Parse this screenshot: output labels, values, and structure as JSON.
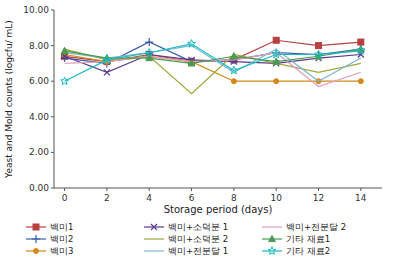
{
  "chart_data": {
    "type": "line",
    "xlabel": "Storage period (days)",
    "ylabel": "Yeast and Mold counts (logcfu/ mL)",
    "x": [
      0,
      2,
      4,
      6,
      8,
      10,
      12,
      14
    ],
    "xlim": [
      -0.5,
      15.0
    ],
    "xticks": [
      0,
      2,
      4,
      6,
      8,
      10,
      12,
      14
    ],
    "ylim": [
      0.0,
      10.0
    ],
    "yticks": [
      {
        "value": 0.0,
        "label": "0.00"
      },
      {
        "value": 2.0,
        "label": "2.00"
      },
      {
        "value": 4.0,
        "label": "4.00"
      },
      {
        "value": 6.0,
        "label": "6.00"
      },
      {
        "value": 8.0,
        "label": "8.00"
      },
      {
        "value": 10.0,
        "label": "10.00"
      }
    ],
    "grid": false,
    "legend": "bottom",
    "series": [
      {
        "name": "백미1",
        "color": "#b94040",
        "marker": "square",
        "values": [
          7.4,
          7.1,
          7.5,
          7.1,
          7.2,
          8.3,
          8.0,
          8.2
        ]
      },
      {
        "name": "백미2",
        "color": "#3a5ca8",
        "marker": "plus",
        "values": [
          7.3,
          7.0,
          8.2,
          7.1,
          7.2,
          7.6,
          7.5,
          7.8
        ]
      },
      {
        "name": "백미3",
        "color": "#d4891a",
        "marker": "circle",
        "values": [
          7.5,
          7.1,
          7.4,
          7.1,
          6.0,
          6.0,
          6.0,
          6.0
        ]
      },
      {
        "name": "백미+소덕분 1",
        "color": "#5b3a8c",
        "marker": "x",
        "values": [
          7.4,
          6.5,
          7.5,
          7.2,
          7.1,
          7.0,
          7.3,
          7.5
        ]
      },
      {
        "name": "백미+소덕분 2",
        "color": "#9aaa3a",
        "marker": "none",
        "values": [
          7.8,
          7.2,
          7.4,
          5.3,
          7.5,
          7.0,
          6.5,
          7.0
        ]
      },
      {
        "name": "백미+전분달 1",
        "color": "#7ab5d8",
        "marker": "none",
        "values": [
          7.6,
          7.3,
          7.6,
          8.0,
          6.5,
          7.8,
          6.0,
          7.3
        ]
      },
      {
        "name": "백미+전분달 2",
        "color": "#e0a0b5",
        "marker": "none",
        "values": [
          7.0,
          7.1,
          7.4,
          7.1,
          7.2,
          7.6,
          5.7,
          6.5
        ]
      },
      {
        "name": "기타 재료1",
        "color": "#4a9a50",
        "marker": "triangle",
        "values": [
          7.7,
          7.3,
          7.3,
          7.0,
          7.4,
          7.1,
          7.4,
          7.8
        ]
      },
      {
        "name": "기타 재료2",
        "color": "#1abcbe",
        "marker": "star",
        "values": [
          6.0,
          7.2,
          7.6,
          8.1,
          6.6,
          7.5,
          7.5,
          7.7
        ]
      }
    ]
  }
}
